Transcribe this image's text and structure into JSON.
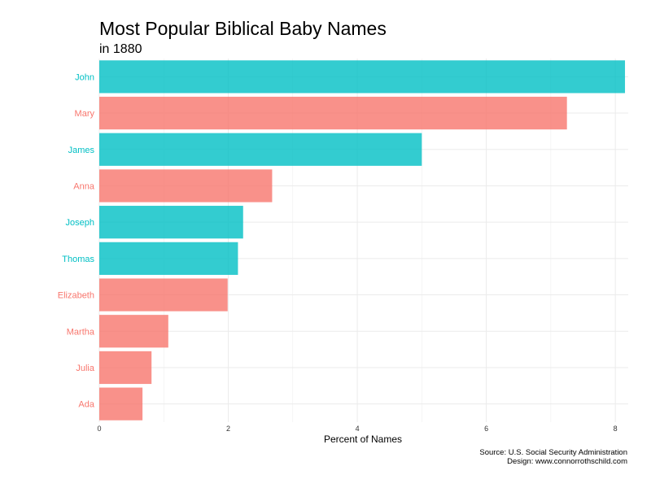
{
  "colors": {
    "female": "#F8766D",
    "male": "#00BFC4",
    "grid": "#ebebeb",
    "text": "#000000"
  },
  "caption": {
    "source": "Source: U.S. Social Security Administration",
    "design": "Design: www.connorrothschild.com"
  },
  "chart_data": {
    "type": "bar",
    "orientation": "horizontal",
    "title": "Most Popular Biblical Baby Names",
    "subtitle": "in 1880",
    "xlabel": "Percent of Names",
    "ylabel": "",
    "xlim": [
      0,
      8.2
    ],
    "x_ticks": [
      0,
      2,
      4,
      6,
      8
    ],
    "grid": true,
    "legend": "none",
    "categories": [
      "John",
      "Mary",
      "James",
      "Anna",
      "Joseph",
      "Thomas",
      "Elizabeth",
      "Martha",
      "Julia",
      "Ada"
    ],
    "values": [
      8.15,
      7.25,
      5.0,
      2.68,
      2.23,
      2.15,
      1.99,
      1.07,
      0.81,
      0.67
    ],
    "category_gender": [
      "male",
      "female",
      "male",
      "female",
      "male",
      "male",
      "female",
      "female",
      "female",
      "female"
    ]
  }
}
